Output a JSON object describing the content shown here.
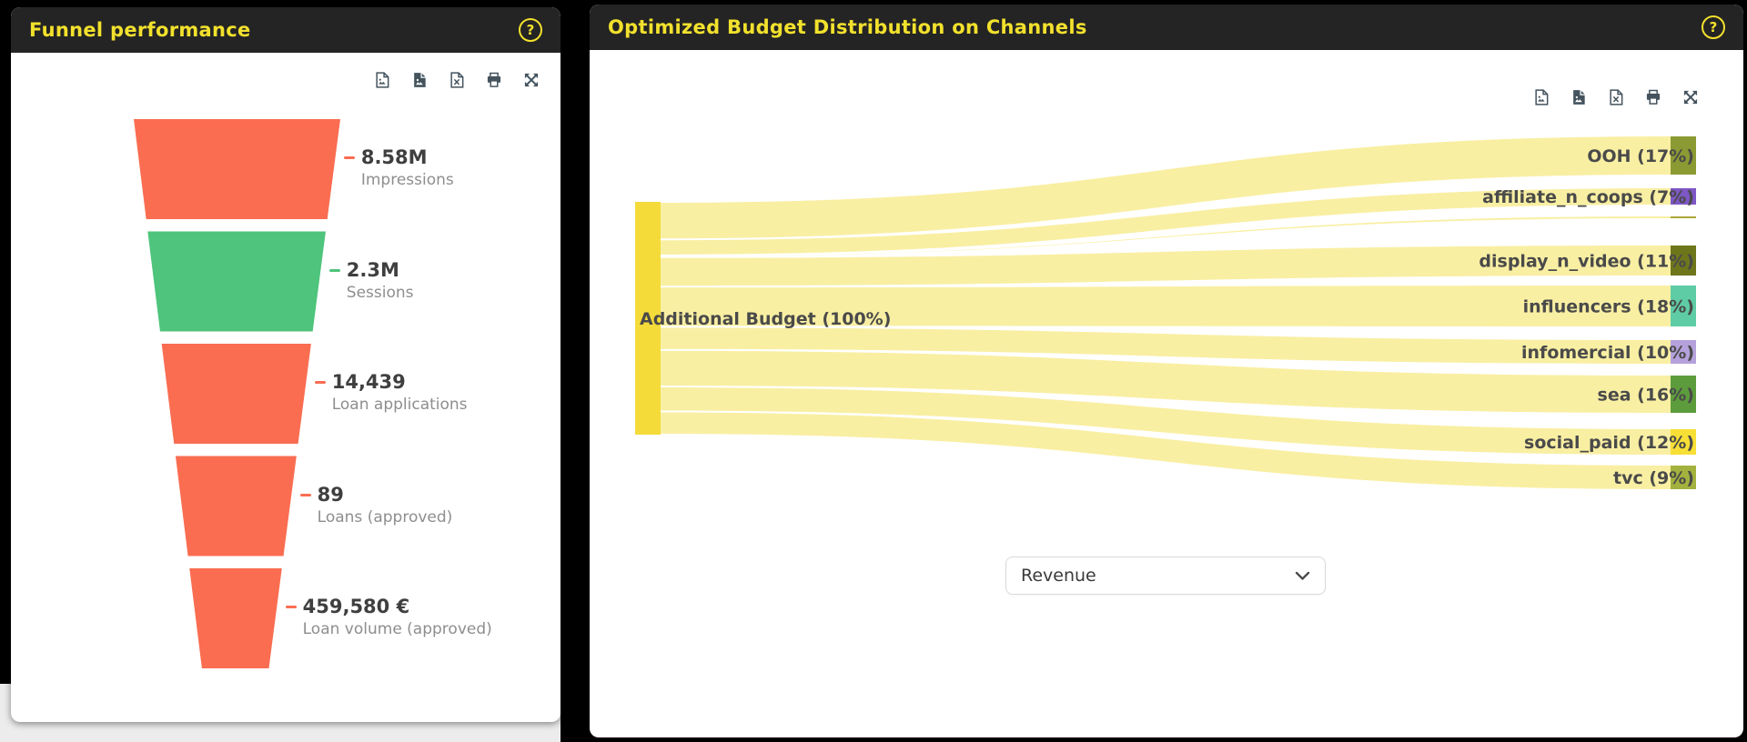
{
  "funnel_panel": {
    "title": "Funnel performance",
    "help": "?",
    "toolbar_icons": [
      "export-png-icon",
      "export-jpeg-icon",
      "export-xls-icon",
      "print-icon",
      "fullscreen-icon"
    ]
  },
  "sankey_panel": {
    "title": "Optimized Budget Distribution on Channels",
    "help": "?",
    "toolbar_icons": [
      "export-png-icon",
      "export-jpeg-icon",
      "export-xls-icon",
      "print-icon",
      "fullscreen-icon"
    ],
    "metric_selector": {
      "value": "Revenue"
    }
  },
  "chart_data": [
    {
      "type": "funnel",
      "title": "Funnel performance",
      "stages": [
        {
          "value": "8.58M",
          "label": "Impressions",
          "color": "#fa6d51"
        },
        {
          "value": "2.3M",
          "label": "Sessions",
          "color": "#4ec47c"
        },
        {
          "value": "14,439",
          "label": "Loan applications",
          "color": "#fa6d51"
        },
        {
          "value": "89",
          "label": "Loans (approved)",
          "color": "#fa6d51"
        },
        {
          "value": "459,580 €",
          "label": "Loan volume (approved)",
          "color": "#fa6d51"
        }
      ]
    },
    {
      "type": "sankey",
      "title": "Optimized Budget Distribution on Channels",
      "source": {
        "label": "Additional Budget (100%)",
        "pct": 100,
        "color": "#f4db3a"
      },
      "flow_color": "#f9efa3",
      "targets": [
        {
          "label": "OOH (17%)",
          "pct": 17,
          "color": "#8c9a33"
        },
        {
          "label": "affiliate_n_coops (7%)",
          "pct": 7,
          "color": "#7e57c5"
        },
        {
          "label": "",
          "pct": 0.5,
          "color": "#aba636"
        },
        {
          "label": "display_n_video (11%)",
          "pct": 11,
          "color": "#6e761c"
        },
        {
          "label": "influencers (18%)",
          "pct": 18,
          "color": "#5ecca5"
        },
        {
          "label": "infomercial (10%)",
          "pct": 10,
          "color": "#b5a1db"
        },
        {
          "label": "sea (16%)",
          "pct": 16,
          "color": "#5d9c3c"
        },
        {
          "label": "social_paid (12%)",
          "pct": 12,
          "color": "#f7df36"
        },
        {
          "label": "tvc (9%)",
          "pct": 9,
          "color": "#a3b23e"
        }
      ],
      "metric_options_visible": "Revenue"
    }
  ]
}
